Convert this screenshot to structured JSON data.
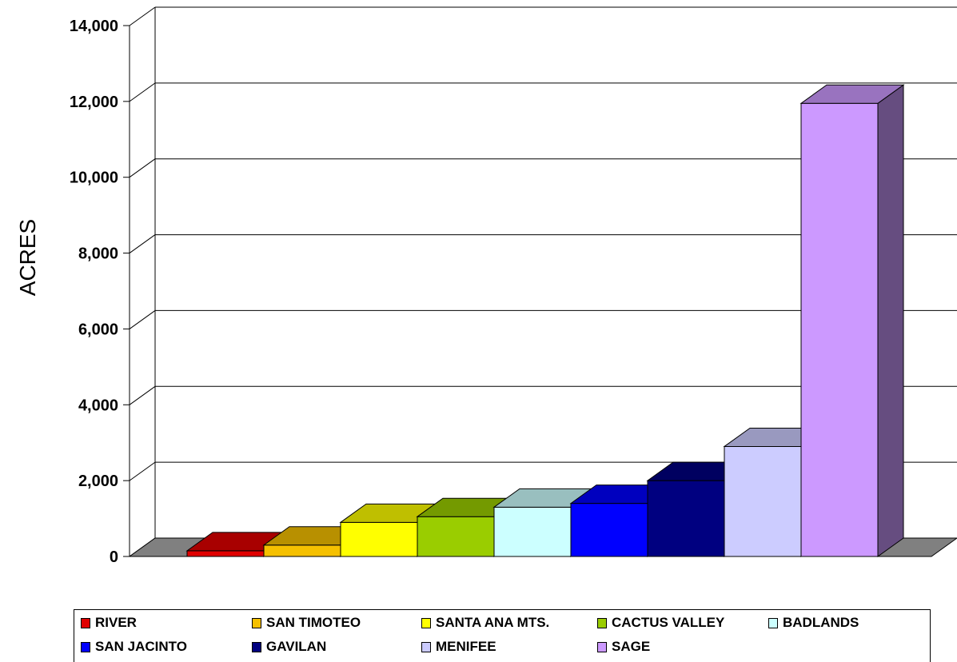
{
  "chart_data": {
    "type": "bar",
    "ylabel": "ACRES",
    "ylim": [
      0,
      14000
    ],
    "yticks": [
      "0",
      "2,000",
      "4,000",
      "6,000",
      "8,000",
      "10,000",
      "12,000",
      "14,000"
    ],
    "grid": true,
    "legend_position": "bottom",
    "series": [
      {
        "name": "RIVER",
        "value": 150,
        "color": "#e00000"
      },
      {
        "name": "SAN TIMOTEO",
        "value": 300,
        "color": "#f5c000"
      },
      {
        "name": "SANTA ANA MTS.",
        "value": 900,
        "color": "#ffff00"
      },
      {
        "name": "CACTUS VALLEY",
        "value": 1050,
        "color": "#9acd00"
      },
      {
        "name": "BADLANDS",
        "value": 1300,
        "color": "#ccffff"
      },
      {
        "name": "SAN JACINTO",
        "value": 1400,
        "color": "#0000ff"
      },
      {
        "name": "GAVILAN",
        "value": 2000,
        "color": "#000080"
      },
      {
        "name": "MENIFEE",
        "value": 2900,
        "color": "#ccccff"
      },
      {
        "name": "SAGE",
        "value": 11950,
        "color": "#cc99ff"
      }
    ]
  }
}
